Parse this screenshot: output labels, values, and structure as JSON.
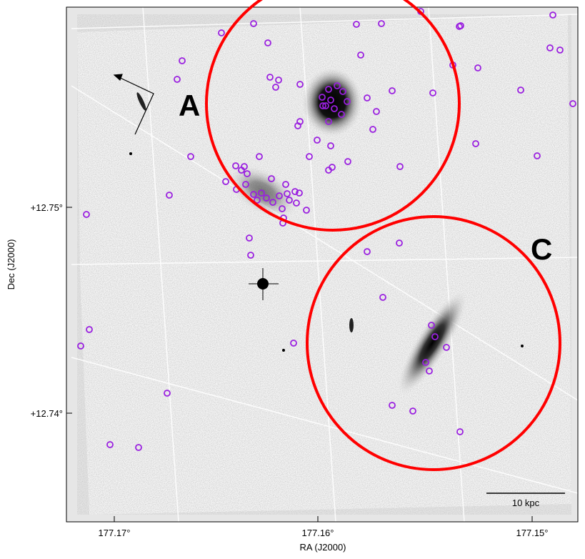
{
  "image": {
    "labels": [
      "A",
      "C"
    ],
    "scale_bar": "10 kpc",
    "x_axis": {
      "title": "RA (J2000)",
      "ticks": [
        "177.17°",
        "177.16°",
        "177.15°"
      ]
    },
    "y_axis": {
      "title": "Dec (J2000)",
      "ticks": [
        "+12.75°",
        "+12.74°"
      ]
    }
  }
}
